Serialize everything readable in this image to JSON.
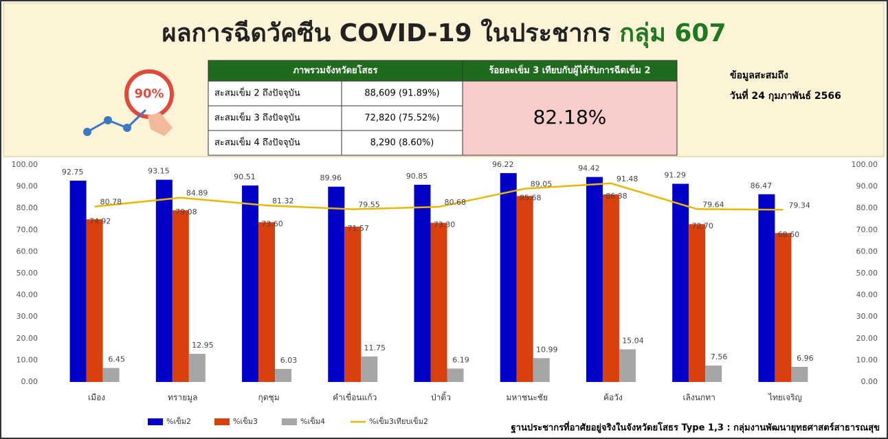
{
  "header": {
    "title_main": "ผลการฉีดวัคซีน COVID-19 ในประชากร",
    "title_group": "กลุ่ม 607",
    "icon_label": "90%",
    "note_line1": "ข้อมูลสะสมถึง",
    "note_line2": "วันที่ 24 กุมภาพันธ์ 2566"
  },
  "table": {
    "headers": [
      "ภาพรวมจังหวัดยโสธร",
      "ร้อยละเข็ม 3 เทียบกับผู้ได้รับการฉีดเข็ม 2"
    ],
    "rows": [
      [
        "สะสมเข็ม 2 ถึงปัจจุบัน",
        "88,609 (91.89%)"
      ],
      [
        "สะสมเข็ม 3 ถึงปัจจุบัน",
        "72,820 (75.52%)"
      ],
      [
        "สะสมเข็ม 4 ถึงปัจจุบัน",
        "8,290 (8.60%)"
      ]
    ],
    "highlight": "82.18%"
  },
  "footer": "ฐานประชากรที่อาศัยอยู่จริงในจังหวัดยโสธร Type 1,3 : กลุ่มงานพัฒนายุทธศาสตร์สาธารณสุข",
  "chart_data": {
    "type": "bar",
    "categories": [
      "เมือง",
      "ทรายมูล",
      "กุดชุม",
      "คำเขื่อนแก้ว",
      "ป่าติ้ว",
      "มหาชนะชัย",
      "ค้อวัง",
      "เลิงนกทา",
      "ไทยเจริญ"
    ],
    "series": [
      {
        "name": "%เข็ม2",
        "color": "#0000c8",
        "values": [
          92.75,
          93.15,
          90.51,
          89.96,
          90.85,
          96.22,
          94.42,
          91.29,
          86.47
        ],
        "value_labels": [
          "92.75",
          "93.15",
          "90.51",
          "89.96",
          "90.85",
          "96.22",
          "94.42",
          "91.29",
          "86.47"
        ]
      },
      {
        "name": "%เข็ม3",
        "color": "#d8400e",
        "values": [
          74.92,
          79.08,
          73.6,
          71.57,
          73.3,
          85.68,
          86.38,
          72.7,
          68.6
        ],
        "value_labels": [
          "74.92",
          "79.08",
          "73.60",
          "71.57",
          "73.30",
          "85.68",
          "86.38",
          "72.70",
          "68.60"
        ]
      },
      {
        "name": "%เข็ม4",
        "color": "#a6a6a6",
        "values": [
          6.45,
          12.95,
          6.03,
          11.75,
          6.19,
          10.99,
          15.04,
          7.56,
          6.96
        ],
        "value_labels": [
          "6.45",
          "12.95",
          "6.03",
          "11.75",
          "6.19",
          "10.99",
          "15.04",
          "7.56",
          "6.96"
        ]
      },
      {
        "name": "%เข็ม3เทียบเข็ม2",
        "color": "#e8b800",
        "type": "line",
        "axis": "y2",
        "values": [
          80.78,
          84.89,
          81.32,
          79.55,
          80.68,
          89.05,
          91.48,
          79.64,
          79.34
        ],
        "value_labels": [
          "80.78",
          "84.89",
          "81.32",
          "79.55",
          "80.68",
          "89.05",
          "91.48",
          "79.64",
          "79.34"
        ]
      }
    ],
    "ylim": [
      0,
      100
    ],
    "yticks": [
      {
        "value": 0,
        "label": "0.00"
      },
      {
        "value": 10,
        "label": "10.00"
      },
      {
        "value": 20,
        "label": "20.00"
      },
      {
        "value": 30,
        "label": "30.00"
      },
      {
        "value": 40,
        "label": "40.00"
      },
      {
        "value": 50,
        "label": "50.00"
      },
      {
        "value": 60,
        "label": "60.00"
      },
      {
        "value": 70,
        "label": "70.00"
      },
      {
        "value": 80,
        "label": "80.00"
      },
      {
        "value": 90,
        "label": "90.00"
      },
      {
        "value": 100,
        "label": "100.00"
      }
    ],
    "y2lim": [
      0,
      100
    ],
    "y2ticks": [
      {
        "value": 0,
        "label": "0.00"
      },
      {
        "value": 10,
        "label": "10.00"
      },
      {
        "value": 20,
        "label": "20.00"
      },
      {
        "value": 30,
        "label": "30.00"
      },
      {
        "value": 40,
        "label": "40.00"
      },
      {
        "value": 50,
        "label": "50.00"
      },
      {
        "value": 60,
        "label": "60.00"
      },
      {
        "value": 70,
        "label": "70.00"
      },
      {
        "value": 80,
        "label": "80.00"
      },
      {
        "value": 90,
        "label": "90.00"
      },
      {
        "value": 100,
        "label": "100.00"
      }
    ],
    "grid": false,
    "legend": "bottom"
  }
}
